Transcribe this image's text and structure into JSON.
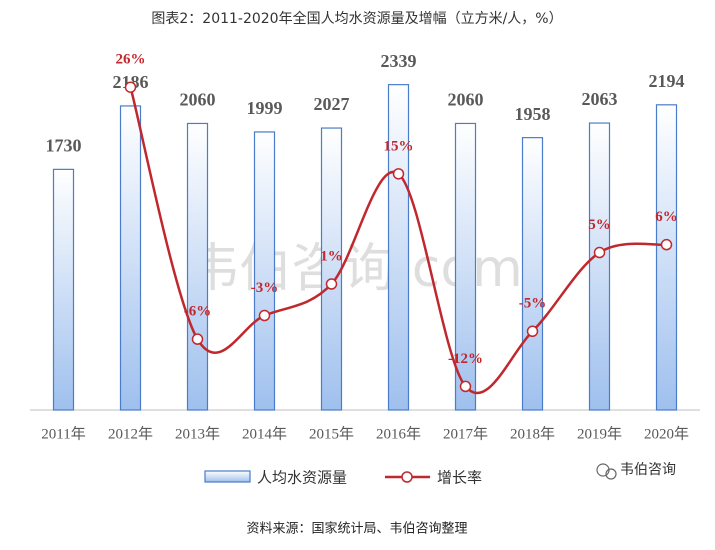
{
  "chart_data": {
    "type": "bar-line",
    "title": "图表2：2011-2020年全国人均水资源量及增幅（立方米/人，%）",
    "watermark": "韦伯咨询.com",
    "brand": "韦伯咨询",
    "source": "资料来源：国家统计局、韦伯咨询整理",
    "categories": [
      "2011年",
      "2012年",
      "2013年",
      "2014年",
      "2015年",
      "2016年",
      "2017年",
      "2018年",
      "2019年",
      "2020年"
    ],
    "ylim": [
      0,
      2660
    ],
    "y2lim": [
      -15,
      32
    ],
    "series": [
      {
        "name": "人均水资源量",
        "type": "bar",
        "color": "#4a7cc9",
        "values": [
          1730,
          2186,
          2060,
          1999,
          2027,
          2339,
          2060,
          1958,
          2063,
          2194
        ]
      },
      {
        "name": "增长率",
        "type": "line",
        "axis": "y2",
        "color": "#c0282d",
        "values": [
          null,
          26,
          -6,
          -3,
          1,
          15,
          -12,
          -5,
          5,
          6
        ],
        "value_labels": [
          null,
          "26%",
          "-6%",
          "-3%",
          "1%",
          "15%",
          "-12%",
          "-5%",
          "5%",
          "6%"
        ]
      }
    ]
  }
}
